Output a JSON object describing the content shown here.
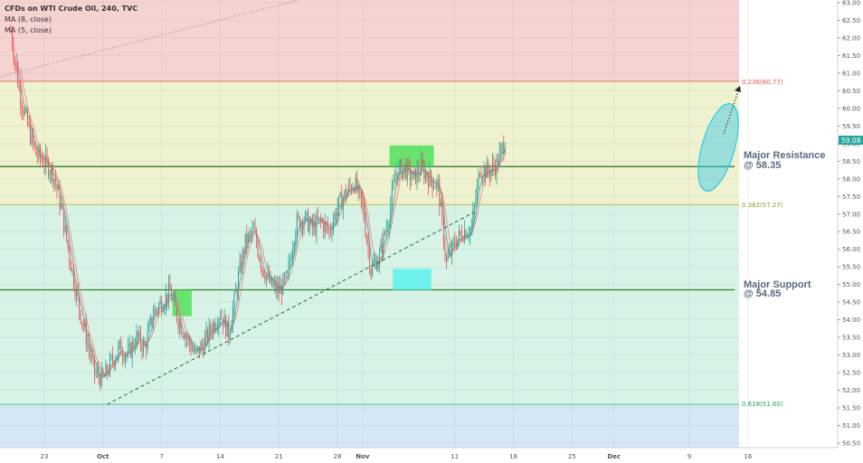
{
  "legend": {
    "title": "CFDs on WTI Crude Oil, 240, TVC",
    "ma8": "MA (8, close)",
    "ma5": "MA (5, close)"
  },
  "annotations": {
    "resistance_line1": "Major Resistance",
    "resistance_line2": "@ 58.35",
    "support_line1": "Major Support",
    "support_line2": "@ 54.85"
  },
  "colors": {
    "up": "#26a69a",
    "down": "#ef5350",
    "ma8": "#e8937d",
    "ma5": "#6f9fb0",
    "level_line": "#2f7d32",
    "zone_green": "#52e05a",
    "zone_cyan": "#5df0ec",
    "ellipse": "#35c8e8",
    "price_badge": "#26a69a"
  },
  "chart_data": {
    "type": "candlestick",
    "title": "CFDs on WTI Crude Oil, 240, TVC",
    "ylim": [
      50.5,
      63.0
    ],
    "y_ticks": [
      "63.00",
      "62.50",
      "62.00",
      "61.50",
      "61.00",
      "60.50",
      "60.00",
      "59.50",
      "59.00",
      "58.50",
      "58.00",
      "57.50",
      "57.00",
      "56.50",
      "56.00",
      "55.50",
      "55.00",
      "54.50",
      "54.00",
      "53.50",
      "53.00",
      "52.50",
      "52.00",
      "51.50",
      "51.00",
      "50.50"
    ],
    "x_ticks": [
      "23",
      "Oct",
      "7",
      "14",
      "21",
      "28",
      "Nov",
      "11",
      "18",
      "25",
      "Dec",
      "9",
      "16"
    ],
    "last_price": "59.08",
    "fib_levels": [
      {
        "label": "0.236(60.77)",
        "value": 60.77
      },
      {
        "label": "0.382(57.27)",
        "value": 57.27
      },
      {
        "label": "0.618(51.60)",
        "value": 51.6
      }
    ],
    "horizontal_levels": [
      58.35,
      54.85
    ],
    "close_path": [
      [
        19,
        62.2
      ],
      [
        20,
        60.5
      ],
      [
        21,
        59.5
      ],
      [
        22,
        58.7
      ],
      [
        23,
        58.5
      ],
      [
        24,
        58.2
      ],
      [
        25,
        57.2
      ],
      [
        26,
        55.8
      ],
      [
        27,
        54.5
      ],
      [
        28,
        53.5
      ],
      [
        29,
        52.5
      ],
      [
        30,
        52.3
      ],
      [
        31,
        52.8
      ],
      [
        32,
        53.2
      ],
      [
        33,
        53.0
      ],
      [
        34,
        53.5
      ],
      [
        35,
        53.2
      ],
      [
        36,
        54.2
      ],
      [
        37,
        54.5
      ],
      [
        38,
        54.8
      ],
      [
        39,
        54.0
      ],
      [
        40,
        53.5
      ],
      [
        41,
        53.0
      ],
      [
        42,
        53.3
      ],
      [
        43,
        53.8
      ],
      [
        44,
        54.2
      ],
      [
        45,
        53.6
      ],
      [
        46,
        55.0
      ],
      [
        47,
        56.2
      ],
      [
        48,
        56.5
      ],
      [
        49,
        55.5
      ],
      [
        50,
        55.0
      ],
      [
        51,
        54.8
      ],
      [
        52,
        55.2
      ],
      [
        53,
        56.7
      ],
      [
        54,
        56.9
      ],
      [
        55,
        56.6
      ],
      [
        56,
        56.8
      ],
      [
        57,
        56.5
      ],
      [
        58,
        57.2
      ],
      [
        59,
        57.6
      ],
      [
        60,
        57.9
      ],
      [
        61,
        57.2
      ],
      [
        62,
        55.4
      ],
      [
        63,
        55.8
      ],
      [
        64,
        56.8
      ],
      [
        65,
        58.2
      ],
      [
        66,
        58.3
      ],
      [
        67,
        58.0
      ],
      [
        68,
        58.3
      ],
      [
        69,
        58.0
      ],
      [
        70,
        57.8
      ],
      [
        71,
        55.6
      ],
      [
        72,
        56.2
      ],
      [
        73,
        56.5
      ],
      [
        74,
        56.6
      ],
      [
        75,
        58.3
      ],
      [
        76,
        58.2
      ],
      [
        77,
        58.4
      ],
      [
        78,
        59.1
      ]
    ],
    "zones": [
      {
        "name": "resistance-zone",
        "x_from": 64.2,
        "x_to": 69.5,
        "y_from": 58.35,
        "y_to": 58.95
      },
      {
        "name": "support-zone-oct",
        "x_from": 38.3,
        "x_to": 40.6,
        "y_from": 54.1,
        "y_to": 54.85
      },
      {
        "name": "support-zone-nov",
        "x_from": 64.6,
        "x_to": 69.2,
        "y_from": 54.85,
        "y_to": 55.45
      }
    ],
    "trendline": {
      "from": [
        30.5,
        51.6
      ],
      "to": [
        74.7,
        57.1
      ]
    }
  }
}
